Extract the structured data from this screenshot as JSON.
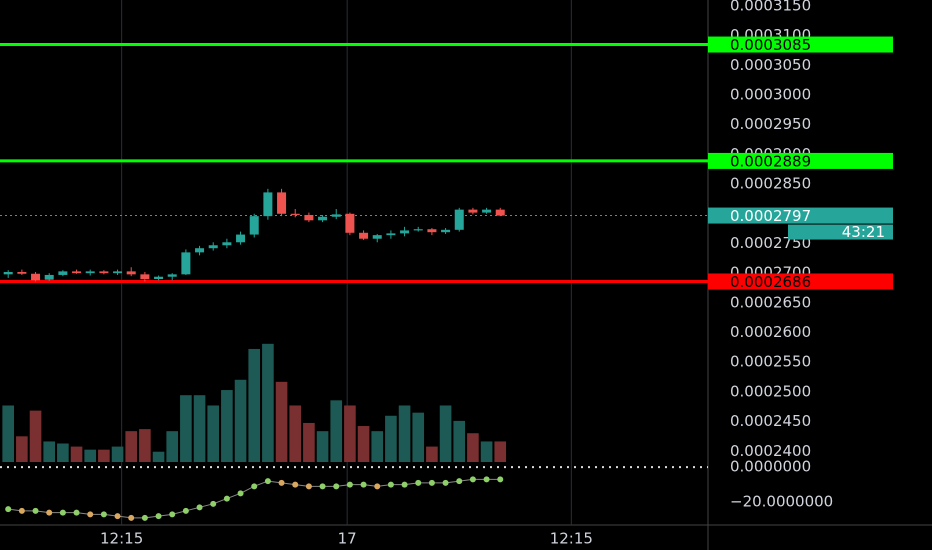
{
  "chart_data": {
    "type": "candlestick",
    "open": [
      0.0002698,
      0.0002702,
      0.0002699,
      0.0002689,
      0.0002697,
      0.0002703,
      0.00027,
      0.0002703,
      0.00027,
      0.0002703,
      0.0002698,
      0.000269,
      0.0002694,
      0.0002698,
      0.0002735,
      0.0002742,
      0.0002747,
      0.0002752,
      0.0002765,
      0.0002796,
      0.0002836,
      0.00028,
      0.0002798,
      0.0002789,
      0.0002795,
      0.00028,
      0.0002768,
      0.0002758,
      0.0002764,
      0.0002767,
      0.0002772,
      0.0002774,
      0.0002769,
      0.0002773,
      0.0002807,
      0.0002802,
      0.0002807
    ],
    "high": [
      0.0002705,
      0.0002706,
      0.0002702,
      0.00027,
      0.0002705,
      0.0002706,
      0.0002706,
      0.0002705,
      0.0002706,
      0.000271,
      0.0002702,
      0.0002696,
      0.00027,
      0.000274,
      0.0002746,
      0.0002752,
      0.0002758,
      0.000277,
      0.00028,
      0.0002842,
      0.0002842,
      0.0002808,
      0.0002802,
      0.0002798,
      0.0002808,
      0.0002802,
      0.0002772,
      0.0002766,
      0.0002772,
      0.0002778,
      0.0002778,
      0.0002776,
      0.0002776,
      0.000281,
      0.000281,
      0.000281,
      0.000281
    ],
    "low": [
      0.0002692,
      0.0002697,
      0.0002686,
      0.0002687,
      0.0002695,
      0.0002699,
      0.0002696,
      0.0002698,
      0.0002697,
      0.0002695,
      0.0002686,
      0.0002688,
      0.0002688,
      0.0002697,
      0.000273,
      0.0002738,
      0.0002742,
      0.0002748,
      0.000276,
      0.000279,
      0.0002796,
      0.0002794,
      0.0002786,
      0.0002786,
      0.0002791,
      0.0002764,
      0.0002756,
      0.0002752,
      0.0002758,
      0.0002762,
      0.000277,
      0.0002764,
      0.0002766,
      0.000277,
      0.0002799,
      0.00028,
      0.0002796
    ],
    "close": [
      0.0002702,
      0.0002699,
      0.0002688,
      0.0002697,
      0.0002703,
      0.00027,
      0.0002703,
      0.00027,
      0.0002703,
      0.0002698,
      0.000269,
      0.0002694,
      0.0002698,
      0.0002735,
      0.0002742,
      0.0002747,
      0.0002752,
      0.0002765,
      0.0002796,
      0.0002836,
      0.00028,
      0.0002798,
      0.0002789,
      0.0002795,
      0.0002799,
      0.0002768,
      0.0002758,
      0.0002764,
      0.0002767,
      0.0002772,
      0.0002774,
      0.0002769,
      0.0002773,
      0.0002807,
      0.0002802,
      0.0002807,
      0.0002797
    ],
    "volume": [
      55,
      25,
      50,
      20,
      18,
      15,
      12,
      12,
      15,
      30,
      32,
      10,
      30,
      65,
      65,
      55,
      70,
      80,
      110,
      115,
      78,
      55,
      38,
      30,
      60,
      55,
      35,
      30,
      45,
      55,
      48,
      15,
      55,
      40,
      28,
      20,
      20
    ],
    "indicator": [
      -24,
      -25,
      -25,
      -26,
      -26,
      -26,
      -27,
      -27,
      -28,
      -29,
      -29,
      -28,
      -27,
      -25,
      -23,
      -21,
      -18,
      -15,
      -11,
      -8,
      -9,
      -10,
      -11,
      -11,
      -11,
      -10,
      -10,
      -11,
      -10,
      -10,
      -9,
      -9,
      -9,
      -8,
      -7,
      -7,
      -7
    ],
    "up_color": "#26a69a",
    "down_color": "#ef5350",
    "xlim": [
      -0.6,
      51.2
    ],
    "xticks": [
      {
        "value": 8.3,
        "label": "12:15"
      },
      {
        "value": 24.8,
        "label": "17"
      },
      {
        "value": 41.2,
        "label": "12:15"
      }
    ],
    "ylim": [
      0.0002382,
      0.000316
    ],
    "yticks": [
      {
        "value": 0.000315,
        "label": "0.0003150"
      },
      {
        "value": 0.00031,
        "label": "0.0003100"
      },
      {
        "value": 0.000305,
        "label": "0.0003050"
      },
      {
        "value": 0.0003,
        "label": "0.0003000"
      },
      {
        "value": 0.000295,
        "label": "0.0002950"
      },
      {
        "value": 0.00029,
        "label": "0.0002900"
      },
      {
        "value": 0.000285,
        "label": "0.0002850"
      },
      {
        "value": 0.000275,
        "label": "0.0002750"
      },
      {
        "value": 0.00027,
        "label": "0.0002700"
      },
      {
        "value": 0.000265,
        "label": "0.0002650"
      },
      {
        "value": 0.00026,
        "label": "0.0002600"
      },
      {
        "value": 0.000255,
        "label": "0.0002550"
      },
      {
        "value": 0.00025,
        "label": "0.0002500"
      },
      {
        "value": 0.000245,
        "label": "0.0002450"
      },
      {
        "value": 0.00024,
        "label": "0.0002400"
      }
    ],
    "y2lim": [
      -33.1,
      2.9
    ],
    "y2ticks": [
      {
        "value": 0,
        "label": "0.0000000"
      },
      {
        "value": -20,
        "label": "−20.0000000"
      }
    ],
    "levels": [
      {
        "value": 0.0003085,
        "color": "#00ff00"
      },
      {
        "value": 0.0002889,
        "color": "#00ff00"
      },
      {
        "value": 0.0002686,
        "color": "#ff0000"
      }
    ],
    "last_price": 0.0002797,
    "countdown": "43:21"
  }
}
